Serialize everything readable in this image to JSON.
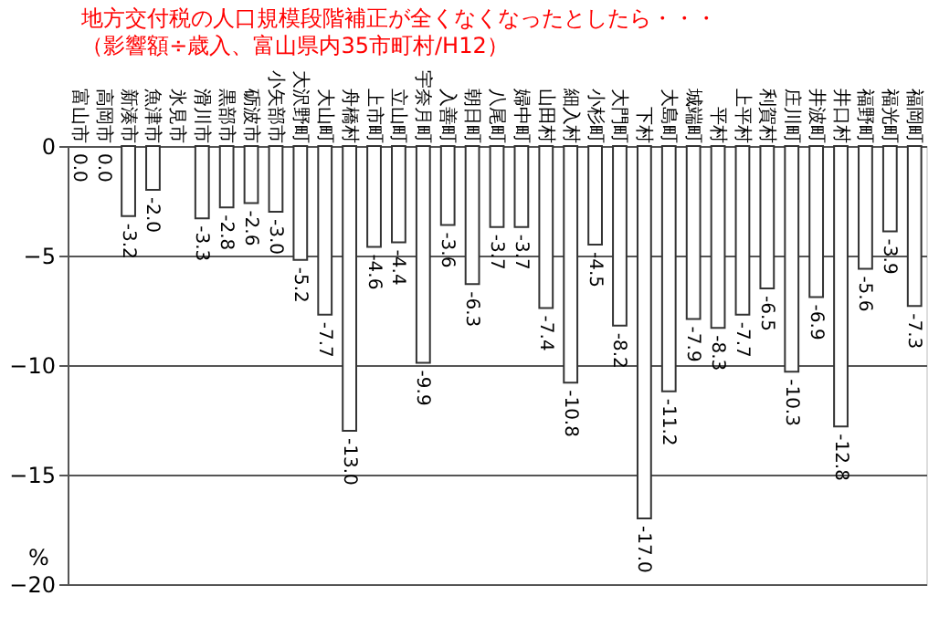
{
  "chart_data": {
    "type": "bar",
    "title": "地方交付税の人口規模段階補正が全くなくなったとしたら・・・",
    "subtitle": "（影響額÷歳入、富山県内35市町村/H12）",
    "ylabel": "%",
    "categories": [
      "富山市",
      "高岡市",
      "新湊市",
      "魚津市",
      "氷見市",
      "滑川市",
      "黒部市",
      "砺波市",
      "小矢部市",
      "大沢野町",
      "大山町",
      "舟橋村",
      "上市町",
      "立山町",
      "宇奈月町",
      "入善町",
      "朝日町",
      "八尾町",
      "婦中町",
      "山田村",
      "細入村",
      "小杉町",
      "大門町",
      "下村",
      "大島町",
      "城端町",
      "平村",
      "上平村",
      "利賀村",
      "庄川町",
      "井波町",
      "井口村",
      "福野町",
      "福光町",
      "福岡町"
    ],
    "values": [
      0.0,
      0.0,
      -3.2,
      -2.0,
      null,
      -3.3,
      -2.8,
      -2.6,
      -3.0,
      -5.2,
      -7.7,
      -13.0,
      -4.6,
      -4.4,
      -9.9,
      -3.6,
      -6.3,
      -3.7,
      -3.7,
      -7.4,
      -10.8,
      -4.5,
      -8.2,
      -17.0,
      -11.2,
      -7.9,
      -8.3,
      -7.7,
      -6.5,
      -10.3,
      -6.9,
      -12.8,
      -5.6,
      -3.9,
      -7.3
    ],
    "value_labels": [
      "0.0",
      "0.0",
      "-3.2",
      "-2.0",
      null,
      "-3.3",
      "-2.8",
      "-2.6",
      "-3.0",
      "-5.2",
      "-7.7",
      "-13.0",
      "-4.6",
      "-4.4",
      "-9.9",
      "-3.6",
      "-6.3",
      "-3.7",
      "-3.7",
      "-7.4",
      "-10.8",
      "-4.5",
      "-8.2",
      "-17.0",
      "-11.2",
      "-7.9",
      "-8.3",
      "-7.7",
      "-6.5",
      "-10.3",
      "-6.9",
      "-12.8",
      "-5.6",
      "-3.9",
      "-7.3"
    ],
    "color": "#ffffff",
    "ylim": [
      -20,
      0
    ],
    "yticks": [
      0,
      -5,
      -10,
      -15,
      -20
    ],
    "grid": "y"
  }
}
